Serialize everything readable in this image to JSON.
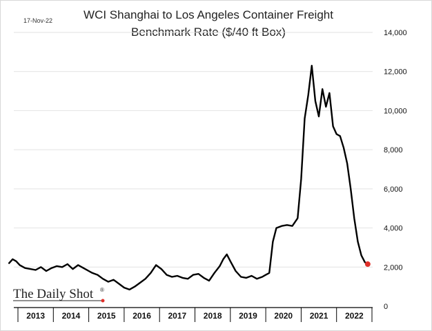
{
  "date_label": "17-Nov-22",
  "brand": {
    "text": "The Daily Shot",
    "mark": "®"
  },
  "chart_data": {
    "type": "line",
    "title": "WCI Shanghai to Los Angeles Container Freight",
    "subtitle": "Benchmark Rate ($/40 ft Box)",
    "xlabel": "",
    "ylabel": "",
    "xlim": [
      2012.75,
      2022.9
    ],
    "ylim": [
      0,
      14000
    ],
    "y_ticks": [
      0,
      2000,
      4000,
      6000,
      8000,
      10000,
      12000,
      14000
    ],
    "y_tick_labels": [
      "0",
      "2,000",
      "4,000",
      "6,000",
      "8,000",
      "10,000",
      "12,000",
      "14,000"
    ],
    "x_ticks": [
      "2013",
      "2014",
      "2015",
      "2016",
      "2017",
      "2018",
      "2019",
      "2020",
      "2021",
      "2022"
    ],
    "grid": true,
    "y_axis_side": "right",
    "series": [
      {
        "color": "#000000",
        "x": [
          2012.75,
          2012.85,
          2012.95,
          2013.05,
          2013.2,
          2013.35,
          2013.5,
          2013.65,
          2013.8,
          2013.95,
          2014.1,
          2014.25,
          2014.4,
          2014.55,
          2014.7,
          2014.85,
          2015.0,
          2015.1,
          2015.25,
          2015.4,
          2015.55,
          2015.7,
          2015.85,
          2016.0,
          2016.15,
          2016.3,
          2016.45,
          2016.6,
          2016.75,
          2016.9,
          2017.05,
          2017.2,
          2017.35,
          2017.5,
          2017.65,
          2017.8,
          2017.95,
          2018.1,
          2018.25,
          2018.4,
          2018.55,
          2018.7,
          2018.8,
          2018.9,
          2019.0,
          2019.15,
          2019.3,
          2019.45,
          2019.6,
          2019.75,
          2019.9,
          2020.0,
          2020.1,
          2020.2,
          2020.3,
          2020.45,
          2020.6,
          2020.75,
          2020.9,
          2021.0,
          2021.1,
          2021.2,
          2021.3,
          2021.4,
          2021.5,
          2021.6,
          2021.7,
          2021.8,
          2021.9,
          2022.0,
          2022.1,
          2022.2,
          2022.3,
          2022.4,
          2022.5,
          2022.6,
          2022.7,
          2022.8,
          2022.88
        ],
        "y": [
          2200,
          2400,
          2300,
          2100,
          1950,
          1900,
          1850,
          2000,
          1800,
          1950,
          2050,
          2000,
          2150,
          1900,
          2100,
          1950,
          1800,
          1700,
          1600,
          1400,
          1250,
          1350,
          1150,
          950,
          850,
          1000,
          1200,
          1400,
          1700,
          2100,
          1900,
          1600,
          1500,
          1550,
          1450,
          1400,
          1600,
          1650,
          1450,
          1300,
          1700,
          2050,
          2400,
          2650,
          2300,
          1800,
          1500,
          1450,
          1550,
          1400,
          1500,
          1600,
          1700,
          3300,
          4000,
          4100,
          4150,
          4100,
          4500,
          6500,
          9600,
          10800,
          12300,
          10500,
          9700,
          11100,
          10200,
          10900,
          9200,
          8800,
          8700,
          8100,
          7300,
          6000,
          4500,
          3300,
          2600,
          2250,
          2150
        ]
      }
    ],
    "end_marker": {
      "x": 2022.88,
      "y": 2150,
      "color": "#e0302a"
    }
  }
}
